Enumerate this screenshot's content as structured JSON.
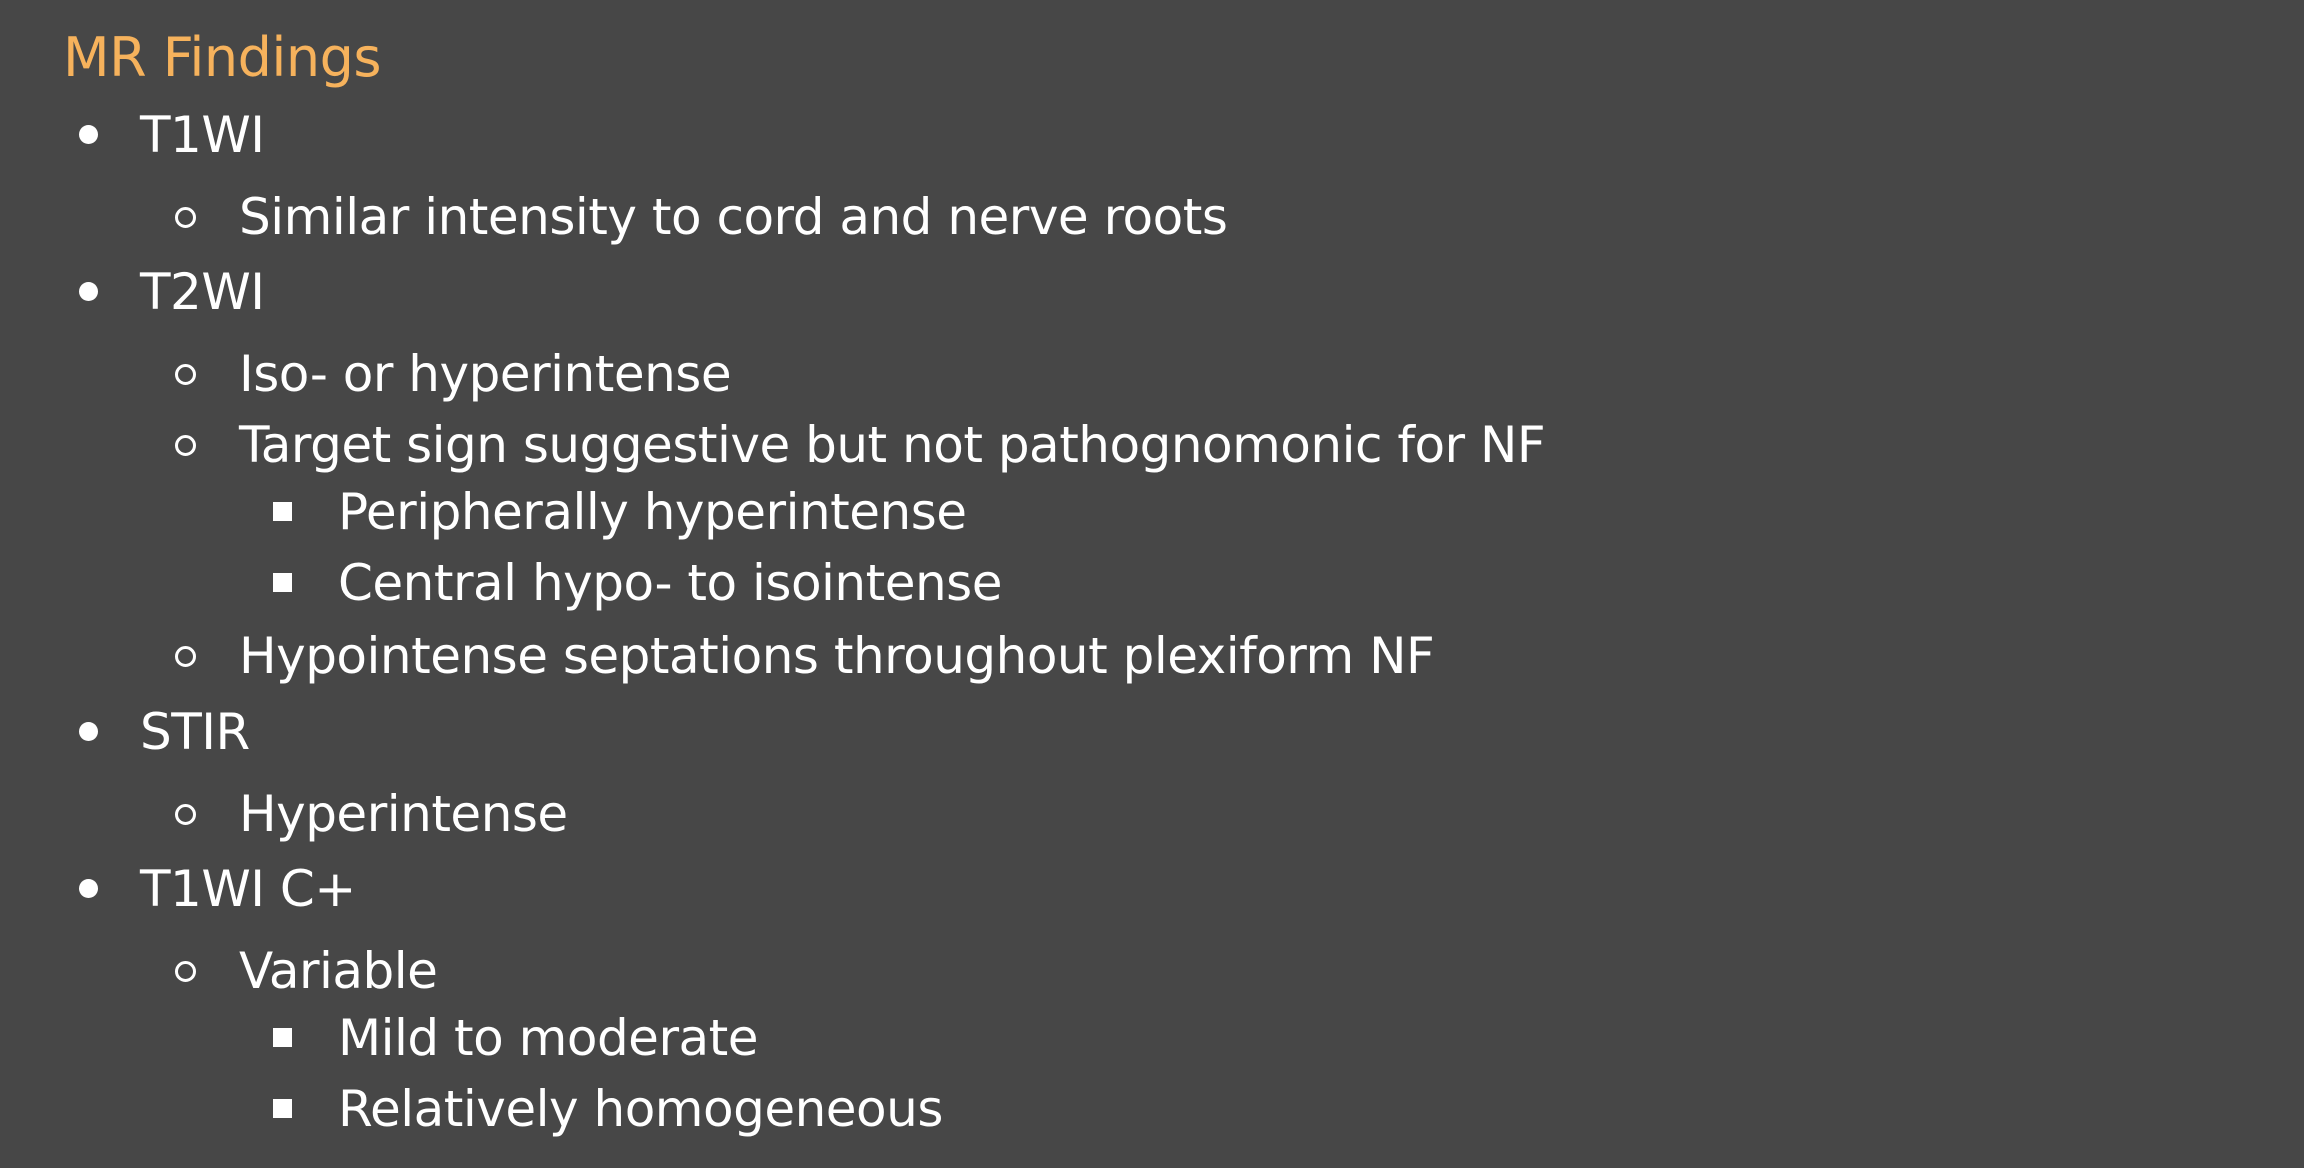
{
  "slide": {
    "title": "MR Findings",
    "title_color": "#F6B25C",
    "background_color": "#474747",
    "text_color": "#FFFFFF",
    "items": [
      {
        "level": 1,
        "text": "T1WI"
      },
      {
        "level": 2,
        "text": "Similar intensity to cord and nerve roots"
      },
      {
        "level": 1,
        "text": "T2WI"
      },
      {
        "level": 2,
        "text": "Iso- or hyperintense"
      },
      {
        "level": 2,
        "text": "Target sign suggestive but not pathognomonic for NF"
      },
      {
        "level": 3,
        "text": "Peripherally hyperintense"
      },
      {
        "level": 3,
        "text": "Central hypo- to isointense"
      },
      {
        "level": 2,
        "text": "Hypointense septations throughout plexiform NF"
      },
      {
        "level": 1,
        "text": "STIR"
      },
      {
        "level": 2,
        "text": "Hyperintense"
      },
      {
        "level": 1,
        "text": "T1WI C+"
      },
      {
        "level": 2,
        "text": "Variable"
      },
      {
        "level": 3,
        "text": "Mild to moderate"
      },
      {
        "level": 3,
        "text": "Relatively homogeneous"
      }
    ]
  }
}
